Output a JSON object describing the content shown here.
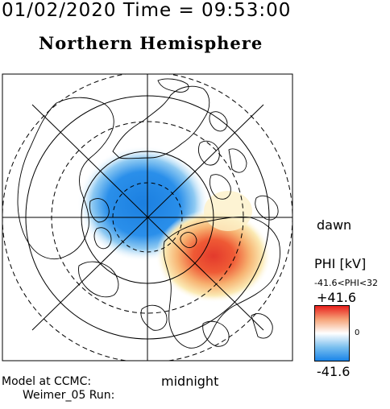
{
  "header": {
    "date_time": "01/02/2020 Time = 09:53:00",
    "title": "Northern Hemisphere"
  },
  "map": {
    "projection": "north-polar",
    "orientation": {
      "right": "dawn",
      "bottom": "midnight"
    },
    "latitude_circles": [
      "solid",
      "dashed",
      "solid",
      "dashed",
      "solid",
      "dashed"
    ],
    "meridian_lines": 4,
    "coastlines": true
  },
  "potential": {
    "negative_cell": {
      "sign": "negative",
      "position": "dusk-noon side",
      "color": "#1b7fe0"
    },
    "positive_cell": {
      "sign": "positive",
      "position": "dawn-midnight side",
      "color": "#e33a2c"
    }
  },
  "legend": {
    "title": "PHI [kV]",
    "range_text": "-41.6<PHI<32",
    "max_label": "+41.6",
    "zero_label": "0",
    "min_label": "-41.6",
    "colors": [
      "#e8201c",
      "#f6a57a",
      "#ffffff",
      "#7cc0ef",
      "#1a84e8"
    ]
  },
  "footer": {
    "model_label": "Model at CCMC:",
    "run_label": "Weimer_05 Run:"
  }
}
